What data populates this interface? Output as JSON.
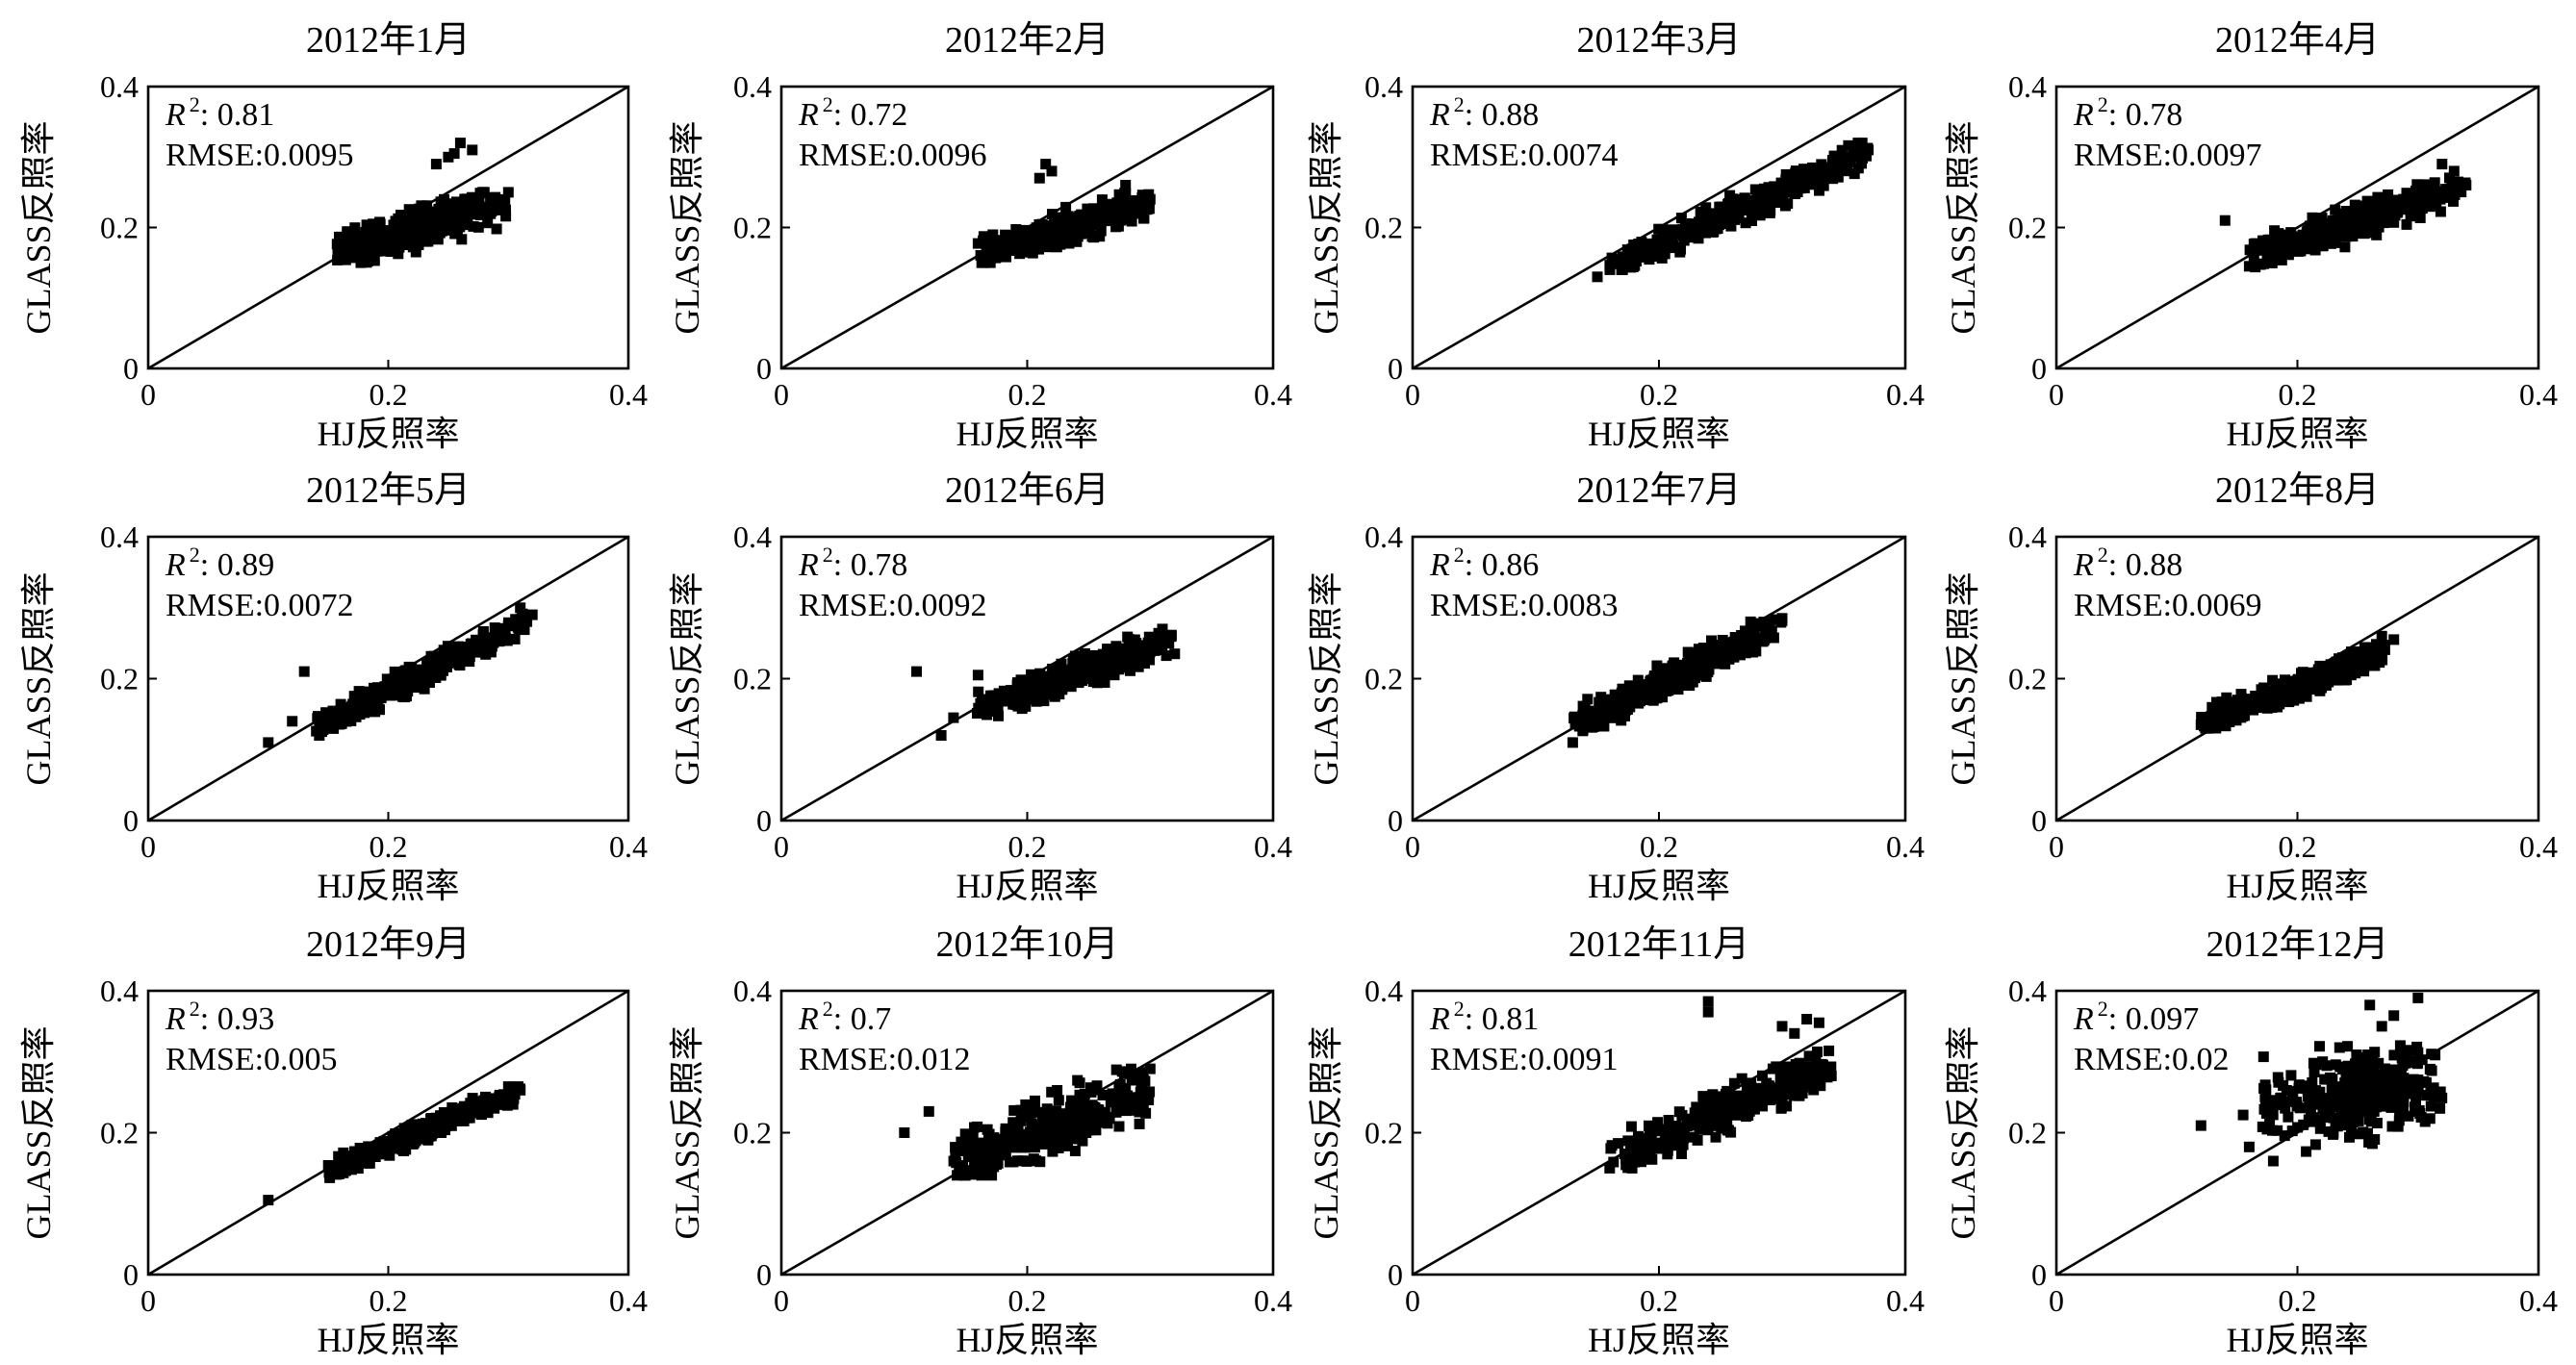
{
  "annotation_labels": {
    "r2_symbol": "R",
    "r2_sup": "2",
    "r2_sep": ": ",
    "rmse_prefix": "RMSE:"
  },
  "chart_data": [
    {
      "type": "scatter",
      "title": "2012年1月",
      "xlabel": "HJ反照率",
      "ylabel": "GLASS反照率",
      "xlim": [
        0,
        0.4
      ],
      "ylim": [
        0,
        0.4
      ],
      "xticks": [
        "0",
        "0.2",
        "0.4"
      ],
      "yticks": [
        "0",
        "0.2",
        "0.4"
      ],
      "grid": false,
      "legend": "none",
      "marker": "square",
      "marker_color": "#000000",
      "reference_line": {
        "slope": 1,
        "intercept": 0
      },
      "annotation": {
        "r2": "0.81",
        "rmse": "0.0095"
      },
      "cluster": {
        "x_range": [
          0.155,
          0.3
        ],
        "y_range": [
          0.15,
          0.32
        ],
        "trend": {
          "slope": 0.5,
          "intercept": 0.087
        },
        "spread": 0.016
      },
      "outliers": [
        [
          0.26,
          0.32
        ],
        [
          0.25,
          0.3
        ],
        [
          0.27,
          0.31
        ],
        [
          0.24,
          0.29
        ],
        [
          0.255,
          0.305
        ],
        [
          0.28,
          0.25
        ],
        [
          0.3,
          0.25
        ]
      ]
    },
    {
      "type": "scatter",
      "title": "2012年2月",
      "xlabel": "HJ反照率",
      "ylabel": "GLASS反照率",
      "xlim": [
        0,
        0.4
      ],
      "ylim": [
        0,
        0.4
      ],
      "xticks": [
        "0",
        "0.2",
        "0.4"
      ],
      "yticks": [
        "0",
        "0.2",
        "0.4"
      ],
      "grid": false,
      "legend": "none",
      "marker": "square",
      "marker_color": "#000000",
      "reference_line": {
        "slope": 1,
        "intercept": 0
      },
      "annotation": {
        "r2": "0.72",
        "rmse": "0.0096"
      },
      "cluster": {
        "x_range": [
          0.16,
          0.3
        ],
        "y_range": [
          0.15,
          0.29
        ],
        "trend": {
          "slope": 0.5,
          "intercept": 0.083
        },
        "spread": 0.014
      },
      "outliers": [
        [
          0.21,
          0.27
        ],
        [
          0.22,
          0.28
        ],
        [
          0.215,
          0.29
        ],
        [
          0.28,
          0.26
        ],
        [
          0.3,
          0.24
        ],
        [
          0.17,
          0.15
        ]
      ]
    },
    {
      "type": "scatter",
      "title": "2012年3月",
      "xlabel": "HJ反照率",
      "ylabel": "GLASS反照率",
      "xlim": [
        0,
        0.4
      ],
      "ylim": [
        0,
        0.4
      ],
      "xticks": [
        "0",
        "0.2",
        "0.4"
      ],
      "yticks": [
        "0",
        "0.2",
        "0.4"
      ],
      "grid": false,
      "legend": "none",
      "marker": "square",
      "marker_color": "#000000",
      "reference_line": {
        "slope": 1,
        "intercept": 0
      },
      "annotation": {
        "r2": "0.88",
        "rmse": "0.0074"
      },
      "cluster": {
        "x_range": [
          0.16,
          0.37
        ],
        "y_range": [
          0.14,
          0.32
        ],
        "trend": {
          "slope": 0.75,
          "intercept": 0.028
        },
        "spread": 0.013
      },
      "outliers": [
        [
          0.15,
          0.13
        ],
        [
          0.37,
          0.31
        ],
        [
          0.365,
          0.32
        ],
        [
          0.36,
          0.3
        ]
      ]
    },
    {
      "type": "scatter",
      "title": "2012年4月",
      "xlabel": "HJ反照率",
      "ylabel": "GLASS反照率",
      "xlim": [
        0,
        0.4
      ],
      "ylim": [
        0,
        0.4
      ],
      "xticks": [
        "0",
        "0.2",
        "0.4"
      ],
      "yticks": [
        "0",
        "0.2",
        "0.4"
      ],
      "grid": false,
      "legend": "none",
      "marker": "square",
      "marker_color": "#000000",
      "reference_line": {
        "slope": 1,
        "intercept": 0
      },
      "annotation": {
        "r2": "0.78",
        "rmse": "0.0097"
      },
      "cluster": {
        "x_range": [
          0.16,
          0.34
        ],
        "y_range": [
          0.14,
          0.29
        ],
        "trend": {
          "slope": 0.55,
          "intercept": 0.072
        },
        "spread": 0.015
      },
      "outliers": [
        [
          0.14,
          0.21
        ],
        [
          0.16,
          0.145
        ],
        [
          0.33,
          0.28
        ],
        [
          0.34,
          0.26
        ],
        [
          0.32,
          0.29
        ]
      ]
    },
    {
      "type": "scatter",
      "title": "2012年5月",
      "xlabel": "HJ反照率",
      "ylabel": "GLASS反照率",
      "xlim": [
        0,
        0.4
      ],
      "ylim": [
        0,
        0.4
      ],
      "xticks": [
        "0",
        "0.2",
        "0.4"
      ],
      "yticks": [
        "0",
        "0.2",
        "0.4"
      ],
      "grid": false,
      "legend": "none",
      "marker": "square",
      "marker_color": "#000000",
      "reference_line": {
        "slope": 1,
        "intercept": 0
      },
      "annotation": {
        "r2": "0.89",
        "rmse": "0.0072"
      },
      "cluster": {
        "x_range": [
          0.14,
          0.32
        ],
        "y_range": [
          0.12,
          0.3
        ],
        "trend": {
          "slope": 0.85,
          "intercept": 0.012
        },
        "spread": 0.012
      },
      "outliers": [
        [
          0.1,
          0.11
        ],
        [
          0.13,
          0.21
        ],
        [
          0.12,
          0.14
        ],
        [
          0.31,
          0.3
        ],
        [
          0.32,
          0.29
        ]
      ]
    },
    {
      "type": "scatter",
      "title": "2012年6月",
      "xlabel": "HJ反照率",
      "ylabel": "GLASS反照率",
      "xlim": [
        0,
        0.4
      ],
      "ylim": [
        0,
        0.4
      ],
      "xticks": [
        "0",
        "0.2",
        "0.4"
      ],
      "yticks": [
        "0",
        "0.2",
        "0.4"
      ],
      "grid": false,
      "legend": "none",
      "marker": "square",
      "marker_color": "#000000",
      "reference_line": {
        "slope": 1,
        "intercept": 0
      },
      "annotation": {
        "r2": "0.78",
        "rmse": "0.0092"
      },
      "cluster": {
        "x_range": [
          0.155,
          0.32
        ],
        "y_range": [
          0.14,
          0.27
        ],
        "trend": {
          "slope": 0.6,
          "intercept": 0.062
        },
        "spread": 0.013
      },
      "outliers": [
        [
          0.11,
          0.21
        ],
        [
          0.13,
          0.12
        ],
        [
          0.16,
          0.205
        ],
        [
          0.14,
          0.145
        ],
        [
          0.31,
          0.27
        ],
        [
          0.32,
          0.235
        ]
      ]
    },
    {
      "type": "scatter",
      "title": "2012年7月",
      "xlabel": "HJ反照率",
      "ylabel": "GLASS反照率",
      "xlim": [
        0,
        0.4
      ],
      "ylim": [
        0,
        0.4
      ],
      "xticks": [
        "0",
        "0.2",
        "0.4"
      ],
      "yticks": [
        "0",
        "0.2",
        "0.4"
      ],
      "grid": false,
      "legend": "none",
      "marker": "square",
      "marker_color": "#000000",
      "reference_line": {
        "slope": 1,
        "intercept": 0
      },
      "annotation": {
        "r2": "0.86",
        "rmse": "0.0083"
      },
      "cluster": {
        "x_range": [
          0.13,
          0.3
        ],
        "y_range": [
          0.12,
          0.29
        ],
        "trend": {
          "slope": 0.85,
          "intercept": 0.022
        },
        "spread": 0.013
      },
      "outliers": [
        [
          0.13,
          0.11
        ],
        [
          0.29,
          0.28
        ],
        [
          0.3,
          0.285
        ],
        [
          0.14,
          0.16
        ]
      ]
    },
    {
      "type": "scatter",
      "title": "2012年8月",
      "xlabel": "HJ反照率",
      "ylabel": "GLASS反照率",
      "xlim": [
        0,
        0.4
      ],
      "ylim": [
        0,
        0.4
      ],
      "xticks": [
        "0",
        "0.2",
        "0.4"
      ],
      "yticks": [
        "0",
        "0.2",
        "0.4"
      ],
      "grid": false,
      "legend": "none",
      "marker": "square",
      "marker_color": "#000000",
      "reference_line": {
        "slope": 1,
        "intercept": 0
      },
      "annotation": {
        "r2": "0.88",
        "rmse": "0.0069"
      },
      "cluster": {
        "x_range": [
          0.12,
          0.28
        ],
        "y_range": [
          0.13,
          0.26
        ],
        "trend": {
          "slope": 0.65,
          "intercept": 0.06
        },
        "spread": 0.011
      },
      "outliers": [
        [
          0.12,
          0.135
        ],
        [
          0.28,
          0.255
        ],
        [
          0.27,
          0.26
        ]
      ]
    },
    {
      "type": "scatter",
      "title": "2012年9月",
      "xlabel": "HJ反照率",
      "ylabel": "GLASS反照率",
      "xlim": [
        0,
        0.4
      ],
      "ylim": [
        0,
        0.4
      ],
      "xticks": [
        "0",
        "0.2",
        "0.4"
      ],
      "yticks": [
        "0",
        "0.2",
        "0.4"
      ],
      "grid": false,
      "legend": "none",
      "marker": "square",
      "marker_color": "#000000",
      "reference_line": {
        "slope": 1,
        "intercept": 0
      },
      "annotation": {
        "r2": "0.93",
        "rmse": "0.005"
      },
      "cluster": {
        "x_range": [
          0.15,
          0.31
        ],
        "y_range": [
          0.13,
          0.265
        ],
        "trend": {
          "slope": 0.7,
          "intercept": 0.042
        },
        "spread": 0.009
      },
      "outliers": [
        [
          0.1,
          0.105
        ],
        [
          0.31,
          0.26
        ],
        [
          0.3,
          0.265
        ]
      ]
    },
    {
      "type": "scatter",
      "title": "2012年10月",
      "xlabel": "HJ反照率",
      "ylabel": "GLASS反照率",
      "xlim": [
        0,
        0.4
      ],
      "ylim": [
        0,
        0.4
      ],
      "xticks": [
        "0",
        "0.2",
        "0.4"
      ],
      "yticks": [
        "0",
        "0.2",
        "0.4"
      ],
      "grid": false,
      "legend": "none",
      "marker": "square",
      "marker_color": "#000000",
      "reference_line": {
        "slope": 1,
        "intercept": 0
      },
      "annotation": {
        "r2": "0.7",
        "rmse": "0.012"
      },
      "cluster": {
        "x_range": [
          0.14,
          0.3
        ],
        "y_range": [
          0.14,
          0.29
        ],
        "trend": {
          "slope": 0.7,
          "intercept": 0.055
        },
        "spread": 0.024
      },
      "outliers": [
        [
          0.1,
          0.2
        ],
        [
          0.12,
          0.23
        ],
        [
          0.3,
          0.29
        ],
        [
          0.29,
          0.28
        ]
      ]
    },
    {
      "type": "scatter",
      "title": "2012年11月",
      "xlabel": "HJ反照率",
      "ylabel": "GLASS反照率",
      "xlim": [
        0,
        0.4
      ],
      "ylim": [
        0,
        0.4
      ],
      "xticks": [
        "0",
        "0.2",
        "0.4"
      ],
      "yticks": [
        "0",
        "0.2",
        "0.4"
      ],
      "grid": false,
      "legend": "none",
      "marker": "square",
      "marker_color": "#000000",
      "reference_line": {
        "slope": 1,
        "intercept": 0
      },
      "annotation": {
        "r2": "0.81",
        "rmse": "0.0091"
      },
      "cluster": {
        "x_range": [
          0.16,
          0.34
        ],
        "y_range": [
          0.15,
          0.34
        ],
        "trend": {
          "slope": 0.75,
          "intercept": 0.042
        },
        "spread": 0.018
      },
      "outliers": [
        [
          0.24,
          0.385
        ],
        [
          0.24,
          0.37
        ],
        [
          0.3,
          0.35
        ],
        [
          0.33,
          0.285
        ],
        [
          0.33,
          0.355
        ],
        [
          0.32,
          0.36
        ],
        [
          0.34,
          0.28
        ],
        [
          0.31,
          0.34
        ]
      ]
    },
    {
      "type": "scatter",
      "title": "2012年12月",
      "xlabel": "HJ反照率",
      "ylabel": "GLASS反照率",
      "xlim": [
        0,
        0.4
      ],
      "ylim": [
        0,
        0.4
      ],
      "xticks": [
        "0",
        "0.2",
        "0.4"
      ],
      "yticks": [
        "0",
        "0.2",
        "0.4"
      ],
      "grid": false,
      "legend": "none",
      "marker": "square",
      "marker_color": "#000000",
      "reference_line": {
        "slope": 1,
        "intercept": 0
      },
      "annotation": {
        "r2": "0.097",
        "rmse": "0.02"
      },
      "cluster": {
        "x_range": [
          0.17,
          0.32
        ],
        "y_range": [
          0.17,
          0.34
        ],
        "trend": {
          "slope": 0.3,
          "intercept": 0.18
        },
        "spread": 0.038
      },
      "outliers": [
        [
          0.12,
          0.21
        ],
        [
          0.155,
          0.225
        ],
        [
          0.3,
          0.39
        ],
        [
          0.26,
          0.38
        ],
        [
          0.27,
          0.35
        ],
        [
          0.28,
          0.365
        ],
        [
          0.16,
          0.18
        ],
        [
          0.31,
          0.22
        ],
        [
          0.3,
          0.23
        ],
        [
          0.18,
          0.16
        ]
      ]
    }
  ]
}
